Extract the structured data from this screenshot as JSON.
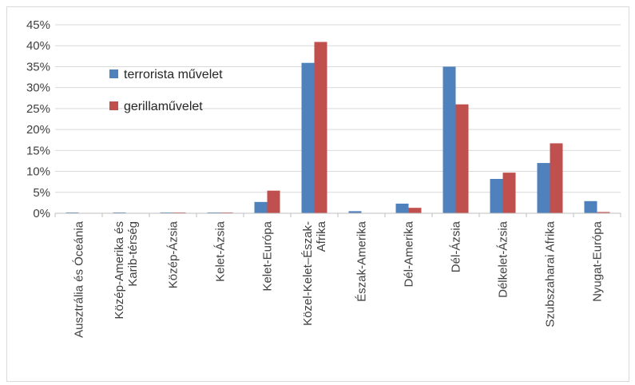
{
  "chart_data": {
    "type": "bar",
    "title": "",
    "xlabel": "",
    "ylabel": "",
    "ylim": [
      0,
      45
    ],
    "yticks": [
      "0%",
      "5%",
      "10%",
      "15%",
      "20%",
      "25%",
      "30%",
      "35%",
      "40%",
      "45%"
    ],
    "grid": true,
    "legend_position": "top-left",
    "categories": [
      [
        "Ausztrália és Óceánia"
      ],
      [
        "Közép-Amerika és",
        "Karib-térség"
      ],
      [
        "Közép-Ázsia"
      ],
      [
        "Kelet-Ázsia"
      ],
      [
        "Kelet-Európa"
      ],
      [
        "Közel-Kelet–Észak-",
        "Afrika"
      ],
      [
        "Észak-Amerika"
      ],
      [
        "Dél-Amerika"
      ],
      [
        "Dél-Ázsia"
      ],
      [
        "Délkelet-Ázsia"
      ],
      [
        "Szubszaharai Afrika"
      ],
      [
        "Nyugat-Európa"
      ]
    ],
    "series": [
      {
        "name": "terrorista művelet",
        "color": "#4f81bd",
        "values": [
          0.2,
          0.2,
          0.2,
          0.2,
          2.7,
          35.9,
          0.5,
          2.3,
          35.0,
          8.2,
          12.0,
          2.9
        ]
      },
      {
        "name": "gerillaművelet",
        "color": "#c0504d",
        "values": [
          0.0,
          0.0,
          0.2,
          0.2,
          5.4,
          40.9,
          0.0,
          1.3,
          26.0,
          9.7,
          16.7,
          0.3
        ]
      }
    ]
  }
}
